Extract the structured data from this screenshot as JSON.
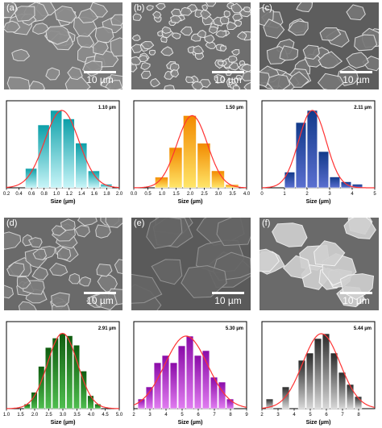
{
  "figure": {
    "panels": [
      {
        "letter": "(a)",
        "scale": "10 µm"
      },
      {
        "letter": "(b)",
        "scale": "10 µm"
      },
      {
        "letter": "(c)",
        "scale": "10 µm"
      },
      {
        "letter": "(d)",
        "scale": "10 µm"
      },
      {
        "letter": "(e)",
        "scale": "10 µm"
      },
      {
        "letter": "(f)",
        "scale": "10 µm"
      }
    ]
  },
  "chart_data": [
    {
      "type": "bar",
      "x": [
        0.6,
        0.8,
        1.0,
        1.2,
        1.4,
        1.6,
        1.8
      ],
      "values": [
        16,
        52,
        64,
        57,
        37,
        14,
        3
      ],
      "annotation": "1.10 µm",
      "xlabel": "Size (µm)",
      "xlim": [
        0.2,
        2.0
      ],
      "xticks": [
        "0.2",
        "0.4",
        "0.6",
        "0.8",
        "1.0",
        "1.2",
        "1.4",
        "1.6",
        "1.8",
        "2.0"
      ],
      "ylim": [
        0,
        72
      ],
      "colors": [
        "#0b9fa8",
        "#c8f5f8"
      ],
      "fit_curve_color": "#ff3333"
    },
    {
      "type": "bar",
      "x": [
        1.0,
        1.5,
        2.0,
        2.5,
        3.0,
        3.5
      ],
      "values": [
        10,
        38,
        68,
        42,
        16,
        3
      ],
      "annotation": "1.50 µm",
      "xlabel": "Size (µm)",
      "xlim": [
        0.0,
        4.0
      ],
      "xticks": [
        "0.0",
        "0.5",
        "1.0",
        "1.5",
        "2.0",
        "2.5",
        "3.0",
        "3.5",
        "4.0"
      ],
      "ylim": [
        0,
        82
      ],
      "colors": [
        "#f28a00",
        "#ffe66a"
      ],
      "fit_curve_color": "#ff3333"
    },
    {
      "type": "bar",
      "x": [
        1.25,
        1.75,
        2.25,
        2.75,
        3.25,
        3.75,
        4.25
      ],
      "values": [
        13,
        54,
        64,
        30,
        9,
        5,
        3
      ],
      "annotation": "2.11 µm",
      "xlabel": "Size (µm)",
      "xlim": [
        0,
        5
      ],
      "xticks": [
        "0",
        "1",
        "2",
        "3",
        "4",
        "5"
      ],
      "ylim": [
        0,
        72
      ],
      "colors": [
        "#123a8a",
        "#5a6fd0"
      ],
      "fit_curve_color": "#ff3333"
    },
    {
      "type": "bar",
      "x": [
        1.75,
        2.0,
        2.25,
        2.5,
        2.75,
        3.0,
        3.25,
        3.5,
        3.75,
        4.0,
        4.25
      ],
      "values": [
        4,
        14,
        36,
        52,
        60,
        64,
        62,
        54,
        32,
        11,
        4
      ],
      "annotation": "2.91 µm",
      "xlabel": "Size (µm)",
      "xlim": [
        1.0,
        5.0
      ],
      "xticks": [
        "1.0",
        "1.5",
        "2.0",
        "2.5",
        "3.0",
        "3.5",
        "4.0",
        "4.5",
        "5.0"
      ],
      "ylim": [
        0,
        74
      ],
      "colors": [
        "#0f5c0f",
        "#4fbe4f"
      ],
      "fit_curve_color": "#ff3333"
    },
    {
      "type": "bar",
      "x": [
        2.5,
        3.0,
        3.5,
        4.0,
        4.5,
        5.0,
        5.5,
        6.0,
        6.5,
        7.0,
        7.5,
        8.0
      ],
      "values": [
        8,
        18,
        38,
        44,
        38,
        52,
        60,
        44,
        48,
        26,
        22,
        8
      ],
      "annotation": "5.30 µm",
      "xlabel": "Size (µm)",
      "xlim": [
        2,
        9
      ],
      "xticks": [
        "2",
        "3",
        "4",
        "5",
        "6",
        "7",
        "8",
        "9"
      ],
      "ylim": [
        0,
        72
      ],
      "colors": [
        "#8a0aa8",
        "#e07cf0"
      ],
      "fit_curve_color": "#ff3333"
    },
    {
      "type": "bar",
      "x": [
        2.5,
        3.5,
        4.5,
        5.0,
        5.5,
        6.0,
        6.5,
        7.0,
        7.5,
        8.0
      ],
      "values": [
        8,
        18,
        40,
        46,
        58,
        62,
        46,
        30,
        20,
        10
      ],
      "annotation": "5.44 µm",
      "xlabel": "Size (µm)",
      "xlim": [
        2,
        9
      ],
      "xticks": [
        "2",
        "3",
        "4",
        "5",
        "6",
        "7",
        "8"
      ],
      "ylim": [
        0,
        72
      ],
      "colors": [
        "#2b2b2b",
        "#d8d8d8"
      ],
      "fit_curve_color": "#ff3333"
    }
  ]
}
